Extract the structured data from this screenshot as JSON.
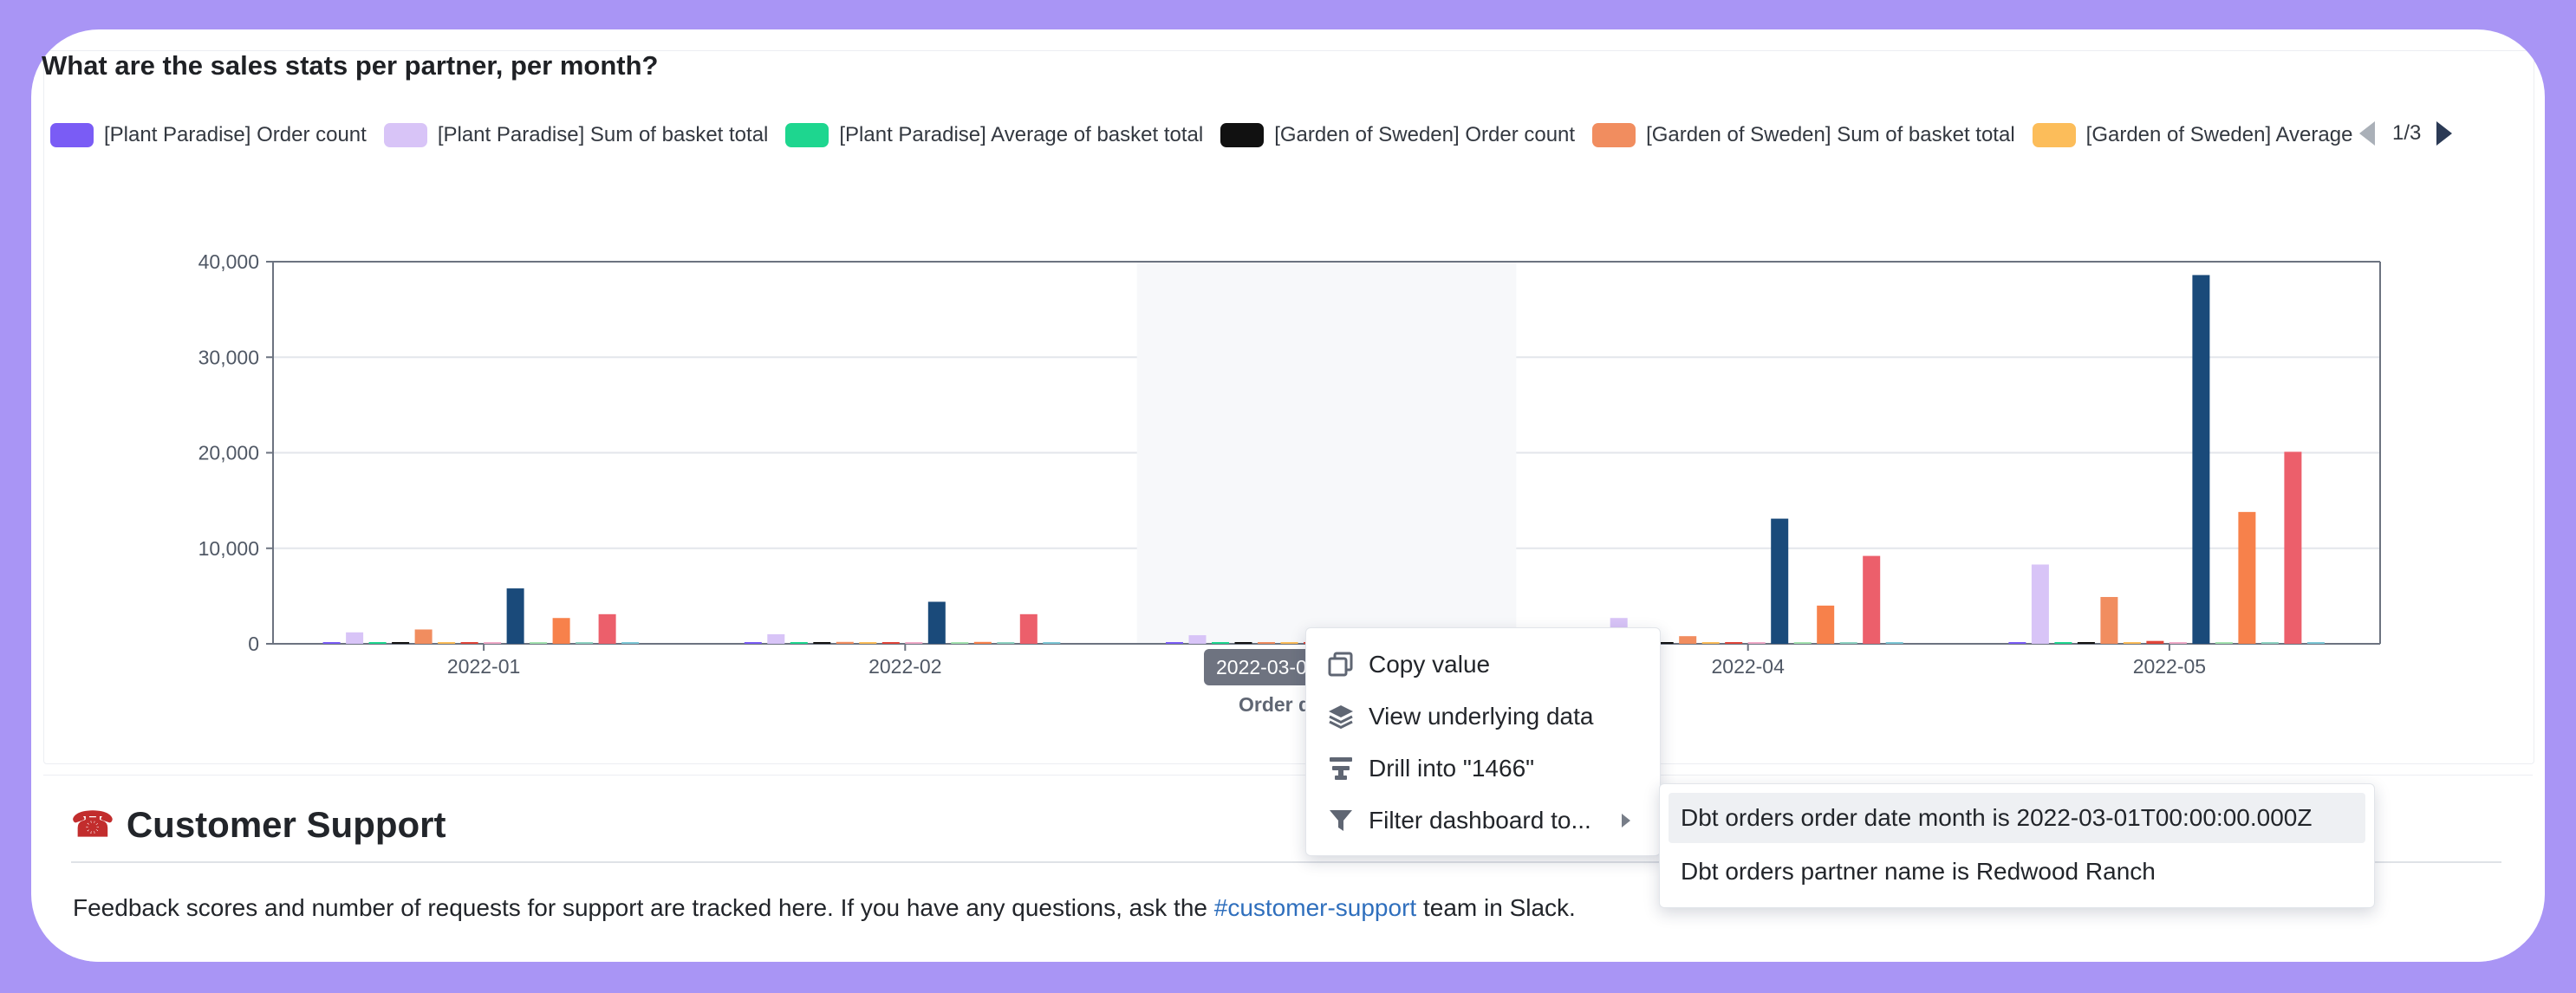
{
  "chart_card": {
    "title": "What are the sales stats per partner, per month?",
    "legend": [
      {
        "label": "[Plant Paradise] Order count",
        "color": "#7a5cf5"
      },
      {
        "label": "[Plant Paradise] Sum of basket total",
        "color": "#d8c4f7"
      },
      {
        "label": "[Plant Paradise] Average of basket total",
        "color": "#1ed68f"
      },
      {
        "label": "[Garden of Sweden] Order count",
        "color": "#111111"
      },
      {
        "label": "[Garden of Sweden] Sum of basket total",
        "color": "#f18d5f"
      },
      {
        "label": "[Garden of Sweden] Average",
        "color": "#fcbd5a"
      }
    ],
    "pager": "1/3",
    "tooltip": "2022-03-01",
    "x_axis_title": "Order date month"
  },
  "chart_data": {
    "type": "bar",
    "categories": [
      "2022-01",
      "2022-02",
      "2022-03",
      "2022-04",
      "2022-05"
    ],
    "ylim": [
      0,
      40000
    ],
    "yticks": [
      0,
      10000,
      20000,
      30000,
      40000
    ],
    "ytick_labels": [
      "0",
      "10,000",
      "20,000",
      "30,000",
      "40,000"
    ],
    "grid": true,
    "series": [
      {
        "name": "[Plant Paradise] Order count",
        "color": "#7a5cf5",
        "values": [
          50,
          40,
          60,
          80,
          120
        ]
      },
      {
        "name": "[Plant Paradise] Sum of basket total",
        "color": "#d8c4f7",
        "values": [
          1200,
          1000,
          900,
          2700,
          8300
        ]
      },
      {
        "name": "[Plant Paradise] Average of basket total",
        "color": "#1ed68f",
        "values": [
          100,
          90,
          110,
          100,
          110
        ]
      },
      {
        "name": "[Garden of Sweden] Order count",
        "color": "#111111",
        "values": [
          40,
          30,
          30,
          60,
          90
        ]
      },
      {
        "name": "[Garden of Sweden] Sum of basket total",
        "color": "#f18d5f",
        "values": [
          1500,
          200,
          150,
          800,
          4900
        ]
      },
      {
        "name": "[Garden of Sweden] Average",
        "color": "#fcbd5a",
        "values": [
          130,
          110,
          100,
          110,
          120
        ]
      },
      {
        "name": "",
        "color": "#e0453a",
        "values": [
          30,
          30,
          30,
          60,
          300
        ]
      },
      {
        "name": "",
        "color": "#f0aac8",
        "values": [
          20,
          20,
          20,
          40,
          100
        ]
      },
      {
        "name": "",
        "color": "#1a4a7a",
        "values": [
          5800,
          4400,
          1466,
          13100,
          38600
        ]
      },
      {
        "name": "",
        "color": "#a4e3b0",
        "values": [
          60,
          50,
          50,
          80,
          120
        ]
      },
      {
        "name": "",
        "color": "#f7814b",
        "values": [
          2700,
          200,
          150,
          4000,
          13800
        ]
      },
      {
        "name": "",
        "color": "#8fd3c2",
        "values": [
          80,
          60,
          60,
          100,
          150
        ]
      },
      {
        "name": "",
        "color": "#ec5f6b",
        "values": [
          3100,
          3100,
          150,
          9200,
          20100
        ]
      },
      {
        "name": "",
        "color": "#7dc7d6",
        "values": [
          60,
          50,
          40,
          70,
          110
        ]
      }
    ]
  },
  "context_menu": {
    "items": [
      {
        "label": "Copy value"
      },
      {
        "label": "View underlying data"
      },
      {
        "label": "Drill into \"1466\""
      },
      {
        "label": "Filter dashboard to..."
      }
    ],
    "submenu": [
      {
        "label": "Dbt orders order date month is 2022-03-01T00:00:00.000Z"
      },
      {
        "label": "Dbt orders partner name is Redwood Ranch"
      }
    ]
  },
  "support_section": {
    "heading": "Customer Support",
    "text_before": "Feedback scores and number of requests for support are tracked here. If you have any questions, ask the ",
    "link": "#customer-support",
    "text_after": " team in Slack."
  }
}
